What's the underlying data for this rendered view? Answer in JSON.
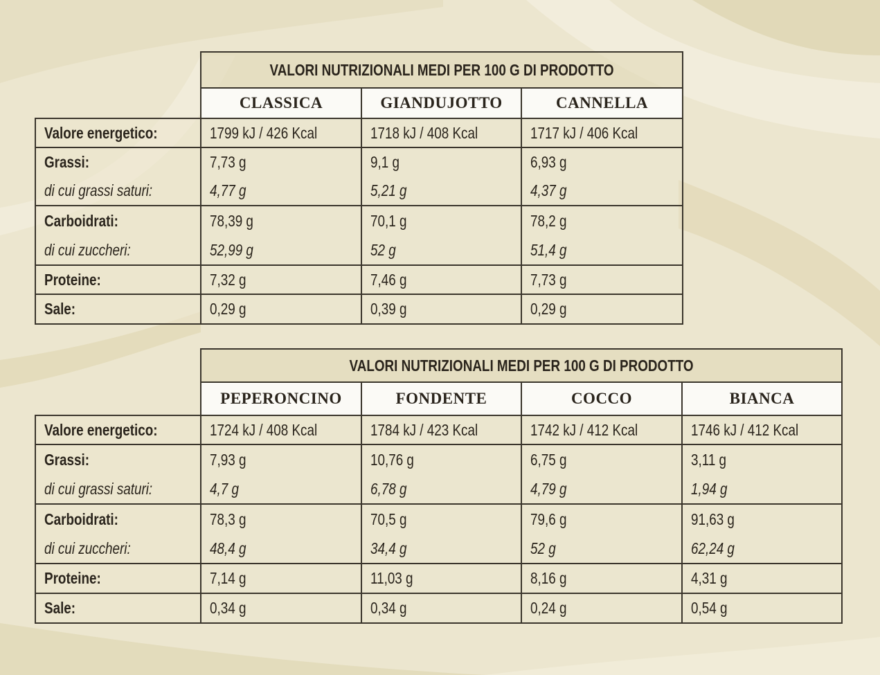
{
  "tables": [
    {
      "title": "VALORI NUTRIZIONALI MEDI PER 100 G DI PRODOTTO",
      "columns": [
        "CLASSICA",
        "GIANDUJOTTO",
        "CANNELLA"
      ],
      "rows": [
        {
          "label": "Valore energetico:",
          "values": [
            "1799 kJ / 426 Kcal",
            "1718 kJ / 408 Kcal",
            "1717 kJ / 406 Kcal"
          ]
        },
        {
          "label": "Grassi:",
          "values": [
            "7,73 g",
            "9,1 g",
            "6,93 g"
          ]
        },
        {
          "label": "di cui grassi saturi:",
          "values": [
            "4,77 g",
            "5,21 g",
            "4,37 g"
          ]
        },
        {
          "label": "Carboidrati:",
          "values": [
            "78,39 g",
            "70,1 g",
            "78,2 g"
          ]
        },
        {
          "label": "di cui zuccheri:",
          "values": [
            "52,99 g",
            "52 g",
            "51,4 g"
          ]
        },
        {
          "label": "Proteine:",
          "values": [
            "7,32 g",
            "7,46 g",
            "7,73 g"
          ]
        },
        {
          "label": "Sale:",
          "values": [
            "0,29 g",
            "0,39 g",
            "0,29 g"
          ]
        }
      ]
    },
    {
      "title": "VALORI NUTRIZIONALI MEDI PER 100 G DI PRODOTTO",
      "columns": [
        "PEPERONCINO",
        "FONDENTE",
        "COCCO",
        "BIANCA"
      ],
      "rows": [
        {
          "label": "Valore energetico:",
          "values": [
            "1724 kJ / 408 Kcal",
            "1784 kJ / 423 Kcal",
            "1742 kJ / 412 Kcal",
            "1746 kJ / 412 Kcal"
          ]
        },
        {
          "label": "Grassi:",
          "values": [
            "7,93 g",
            "10,76 g",
            "6,75 g",
            "3,11 g"
          ]
        },
        {
          "label": "di cui grassi saturi:",
          "values": [
            "4,7 g",
            "6,78 g",
            "4,79 g",
            "1,94 g"
          ]
        },
        {
          "label": "Carboidrati:",
          "values": [
            "78,3 g",
            "70,5 g",
            "79,6 g",
            "91,63 g"
          ]
        },
        {
          "label": "di cui zuccheri:",
          "values": [
            "48,4 g",
            "34,4 g",
            "52 g",
            "62,24 g"
          ]
        },
        {
          "label": "Proteine:",
          "values": [
            "7,14 g",
            "11,03 g",
            "8,16 g",
            "4,31 g"
          ]
        },
        {
          "label": "Sale:",
          "values": [
            "0,34 g",
            "0,34 g",
            "0,24 g",
            "0,54 g"
          ]
        }
      ]
    }
  ]
}
